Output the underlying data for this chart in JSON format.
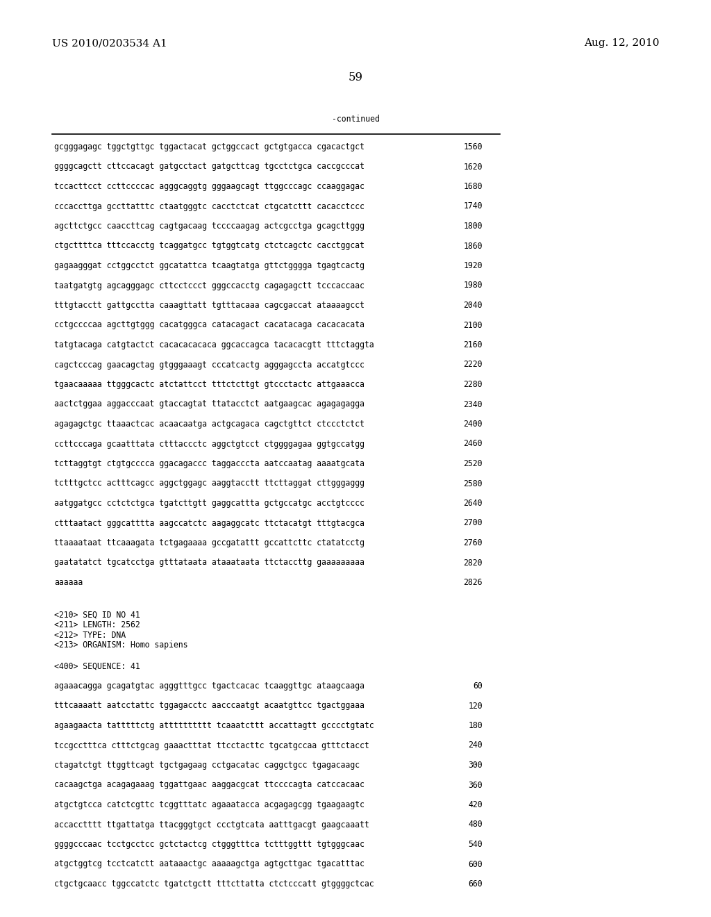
{
  "background_color": "#ffffff",
  "header_left": "US 2010/0203534 A1",
  "header_right": "Aug. 12, 2010",
  "page_number": "59",
  "continued_label": "-continued",
  "font_size_header": 11,
  "font_size_page_num": 12,
  "font_size_mono": 8.3,
  "font_size_info": 8.3,
  "sequence_lines": [
    [
      "gcgggagagc tggctgttgc tggactacat gctggccact gctgtgacca cgacactgct",
      "1560"
    ],
    [
      "ggggcagctt cttccacagt gatgcctact gatgcttcag tgcctctgca caccgcccat",
      "1620"
    ],
    [
      "tccacttcct ccttccccac agggcaggtg gggaagcagt ttggcccagc ccaaggagac",
      "1680"
    ],
    [
      "cccaccttga gccttatttc ctaatgggtc cacctctcat ctgcatcttt cacacctccc",
      "1740"
    ],
    [
      "agcttctgcc caaccttcag cagtgacaag tccccaagag actcgcctga gcagcttggg",
      "1800"
    ],
    [
      "ctgcttttca tttccacctg tcaggatgcc tgtggtcatg ctctcagctc cacctggcat",
      "1860"
    ],
    [
      "gagaagggat cctggcctct ggcatattca tcaagtatga gttctgggga tgagtcactg",
      "1920"
    ],
    [
      "taatgatgtg agcagggagc cttcctccct gggccacctg cagagagctt tcccaccaac",
      "1980"
    ],
    [
      "tttgtacctt gattgcctta caaagttatt tgtttacaaa cagcgaccat ataaaagcct",
      "2040"
    ],
    [
      "cctgccccaa agcttgtggg cacatgggca catacagact cacatacaga cacacacata",
      "2100"
    ],
    [
      "tatgtacaga catgtactct cacacacacaca ggcaccagca tacacacgtt tttctaggta",
      "2160"
    ],
    [
      "cagctcccag gaacagctag gtgggaaagt cccatcactg agggagccta accatgtccc",
      "2220"
    ],
    [
      "tgaacaaaaa ttgggcactc atctattcct tttctcttgt gtccctactc attgaaacca",
      "2280"
    ],
    [
      "aactctggaa aggacccaat gtaccagtat ttatacctct aatgaagcac agagagagga",
      "2340"
    ],
    [
      "agagagctgc ttaaactcac acaacaatga actgcagaca cagctgttct ctccctctct",
      "2400"
    ],
    [
      "ccttcccaga gcaatttata ctttaccctc aggctgtcct ctggggagaa ggtgccatgg",
      "2460"
    ],
    [
      "tcttaggtgt ctgtgcccca ggacagaccc taggacccta aatccaatag aaaatgcata",
      "2520"
    ],
    [
      "tctttgctcc actttcagcc aggctggagc aaggtacctt ttcttaggat cttgggaggg",
      "2580"
    ],
    [
      "aatggatgcc cctctctgca tgatcttgtt gaggcattta gctgccatgc acctgtcccc",
      "2640"
    ],
    [
      "ctttaatact gggcatttta aagccatctc aagaggcatc ttctacatgt tttgtacgca",
      "2700"
    ],
    [
      "ttaaaataat ttcaaagata tctgagaaaa gccgatattt gccattcttc ctatatcctg",
      "2760"
    ],
    [
      "gaatatatct tgcatcctga gtttataata ataaataata ttctaccttg gaaaaaaaaa",
      "2820"
    ],
    [
      "aaaaaa",
      "2826"
    ]
  ],
  "seq_info_lines": [
    "<210> SEQ ID NO 41",
    "<211> LENGTH: 2562",
    "<212> TYPE: DNA",
    "<213> ORGANISM: Homo sapiens"
  ],
  "seq_400_line": "<400> SEQUENCE: 41",
  "seq_data_lines": [
    [
      "agaaacagga gcagatgtac agggtttgcc tgactcacac tcaaggttgc ataagcaaga",
      "60"
    ],
    [
      "tttcaaaatt aatcctattc tggagacctc aacccaatgt acaatgttcc tgactggaaa",
      "120"
    ],
    [
      "agaagaacta tatttttctg atttttttttt tcaaatcttt accattagtt gcccctgtatc",
      "180"
    ],
    [
      "tccgcctttca ctttctgcag gaaactttat ttcctacttc tgcatgccaa gtttctacct",
      "240"
    ],
    [
      "ctagatctgt ttggttcagt tgctgagaag cctgacatac caggctgcc tgagacaagc",
      "300"
    ],
    [
      "cacaagctga acagagaaag tggattgaac aaggacgcat ttccccagta catccacaac",
      "360"
    ],
    [
      "atgctgtcca catctcgttc tcggtttatc agaaatacca acgagagcgg tgaagaagtc",
      "420"
    ],
    [
      "accacctttt ttgattatga ttacgggtgct ccctgtcata aatttgacgt gaagcaaatt",
      "480"
    ],
    [
      "ggggcccaac tcctgcctcc gctctactcg ctgggtttca tctttggttt tgtgggcaac",
      "540"
    ],
    [
      "atgctggtcg tcctcatctt aataaactgc aaaaagctga agtgcttgac tgacatttac",
      "600"
    ],
    [
      "ctgctgcaacc tggccatctc tgatctgctt tttcttatta ctctcccatt gtggggctcac",
      "660"
    ]
  ]
}
